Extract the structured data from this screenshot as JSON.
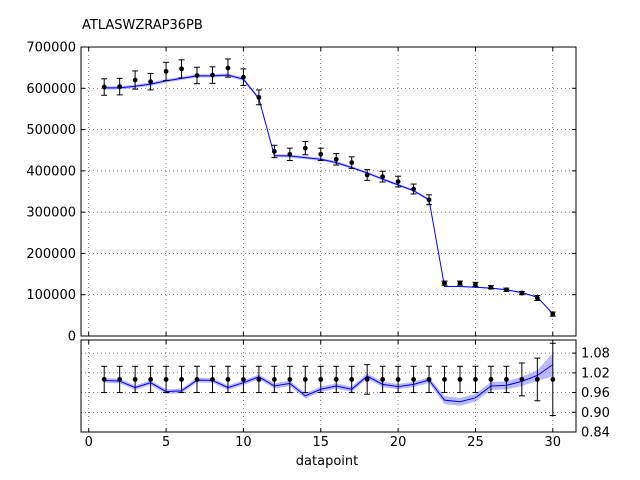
{
  "chart_data": [
    {
      "type": "line",
      "panel": "main",
      "title": "ATLASWZRAP36PB",
      "xlabel": "",
      "ylabel": "",
      "xlim": [
        -0.5,
        31.5
      ],
      "ylim": [
        0,
        700000
      ],
      "yticks": [
        0,
        100000,
        200000,
        300000,
        400000,
        500000,
        600000,
        700000
      ],
      "ytick_labels": [
        "0",
        "100000",
        "200000",
        "300000",
        "400000",
        "500000",
        "600000",
        "700000"
      ],
      "grid": true,
      "series": [
        {
          "kind": "data-points-with-errors",
          "color": "#000000",
          "x": [
            1,
            2,
            3,
            4,
            5,
            6,
            7,
            8,
            9,
            10,
            11,
            12,
            13,
            14,
            15,
            16,
            17,
            18,
            19,
            20,
            21,
            22,
            23,
            24,
            25,
            26,
            27,
            28,
            29,
            30
          ],
          "y": [
            603000,
            604000,
            620000,
            616000,
            641000,
            647000,
            631000,
            632000,
            649000,
            627000,
            578000,
            447000,
            440000,
            455000,
            440000,
            428000,
            420000,
            390000,
            386000,
            374000,
            356000,
            330000,
            128000,
            128000,
            125000,
            118000,
            112000,
            104000,
            92000,
            53000
          ],
          "err": [
            20000,
            20000,
            22000,
            20000,
            22000,
            22000,
            20000,
            20000,
            22000,
            20000,
            18000,
            15000,
            15000,
            16000,
            15000,
            14000,
            14000,
            13000,
            13000,
            13000,
            12000,
            12000,
            5000,
            5000,
            5000,
            4000,
            4000,
            4000,
            6000,
            5000
          ]
        },
        {
          "kind": "theory-line-with-band",
          "color": "#0000ff",
          "band_color": "#8080ff",
          "x": [
            1,
            2,
            3,
            4,
            5,
            6,
            7,
            8,
            9,
            10,
            11,
            12,
            13,
            14,
            15,
            16,
            17,
            18,
            19,
            20,
            21,
            22,
            23,
            24,
            25,
            26,
            27,
            28,
            29,
            30
          ],
          "y": [
            601000,
            601000,
            605000,
            610000,
            618000,
            624000,
            630000,
            630000,
            632000,
            622000,
            575000,
            437000,
            436000,
            432000,
            428000,
            420000,
            408000,
            395000,
            380000,
            366000,
            352000,
            330000,
            120000,
            120000,
            118000,
            116000,
            112000,
            105000,
            94000,
            54000
          ],
          "band": [
            4000,
            4000,
            4000,
            4000,
            4000,
            4000,
            4000,
            4000,
            4000,
            4000,
            4000,
            3500,
            3500,
            3500,
            3500,
            3500,
            3500,
            3000,
            3000,
            3000,
            3000,
            3000,
            1500,
            1500,
            1500,
            1500,
            1500,
            1500,
            1500,
            2000
          ]
        }
      ]
    },
    {
      "type": "line",
      "panel": "ratio",
      "xlabel": "datapoint",
      "ylabel": "",
      "xlim": [
        -0.5,
        31.5
      ],
      "ylim": [
        0.84,
        1.12
      ],
      "xticks": [
        0,
        5,
        10,
        15,
        20,
        25,
        30
      ],
      "xtick_labels": [
        "0",
        "5",
        "10",
        "15",
        "20",
        "25",
        "30"
      ],
      "yticks": [
        0.84,
        0.9,
        0.96,
        1.02,
        1.08
      ],
      "ytick_labels": [
        "0.84",
        "0.90",
        "0.96",
        "1.02",
        "1.08"
      ],
      "grid": true,
      "series": [
        {
          "kind": "data-points-with-errors",
          "color": "#000000",
          "x": [
            1,
            2,
            3,
            4,
            5,
            6,
            7,
            8,
            9,
            10,
            11,
            12,
            13,
            14,
            15,
            16,
            17,
            18,
            19,
            20,
            21,
            22,
            23,
            24,
            25,
            26,
            27,
            28,
            29,
            30
          ],
          "y": [
            1,
            1,
            1,
            1,
            1,
            1,
            1,
            1,
            1,
            1,
            1,
            1,
            1,
            1,
            1,
            1,
            1,
            1,
            1,
            1,
            1,
            1,
            1,
            1,
            1,
            1,
            1,
            1,
            1,
            1
          ],
          "err": [
            0.04,
            0.04,
            0.04,
            0.04,
            0.04,
            0.04,
            0.04,
            0.04,
            0.04,
            0.04,
            0.04,
            0.04,
            0.04,
            0.04,
            0.04,
            0.04,
            0.04,
            0.045,
            0.04,
            0.04,
            0.04,
            0.04,
            0.04,
            0.04,
            0.04,
            0.04,
            0.04,
            0.05,
            0.065,
            0.11
          ]
        },
        {
          "kind": "theory-ratio-with-band",
          "color": "#0000ff",
          "band_color": "#8080ff",
          "x": [
            1,
            2,
            3,
            4,
            5,
            6,
            7,
            8,
            9,
            10,
            11,
            12,
            13,
            14,
            15,
            16,
            17,
            18,
            19,
            20,
            21,
            22,
            23,
            24,
            25,
            26,
            27,
            28,
            29,
            30
          ],
          "y": [
            0.997,
            0.995,
            0.975,
            0.99,
            0.963,
            0.965,
            0.998,
            0.997,
            0.975,
            0.99,
            1.008,
            0.98,
            0.988,
            0.95,
            0.97,
            0.98,
            0.97,
            1.01,
            0.985,
            0.978,
            0.985,
            0.998,
            0.937,
            0.932,
            0.944,
            0.98,
            0.982,
            0.994,
            1.012,
            1.045
          ],
          "band": [
            0.007,
            0.007,
            0.007,
            0.007,
            0.007,
            0.007,
            0.007,
            0.007,
            0.007,
            0.007,
            0.007,
            0.008,
            0.008,
            0.008,
            0.008,
            0.008,
            0.008,
            0.008,
            0.008,
            0.008,
            0.008,
            0.009,
            0.012,
            0.012,
            0.012,
            0.012,
            0.012,
            0.014,
            0.016,
            0.036
          ]
        }
      ]
    }
  ]
}
